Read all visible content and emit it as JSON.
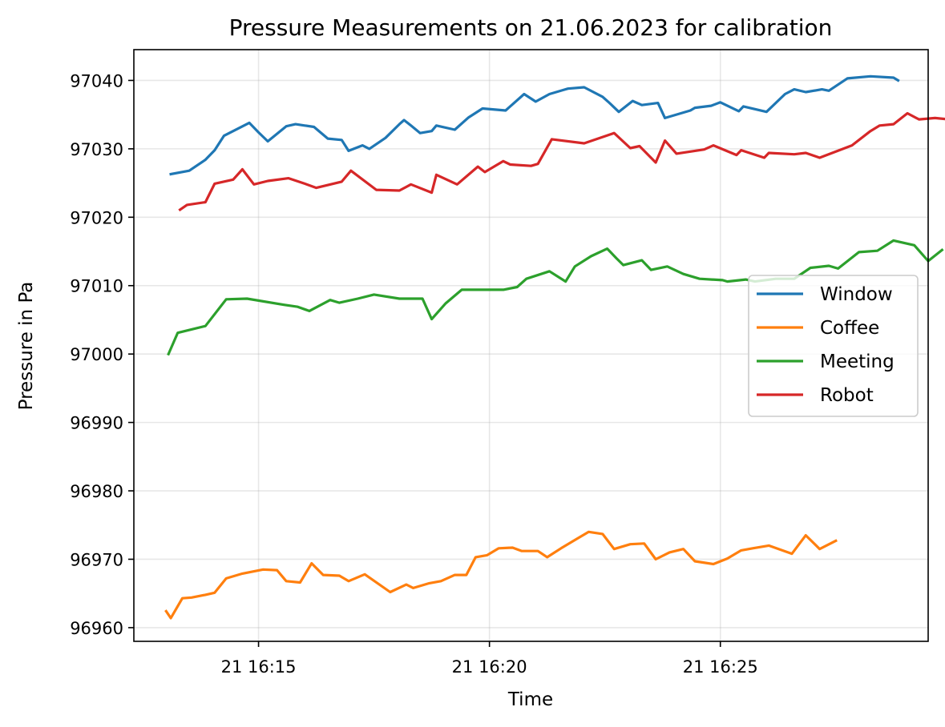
{
  "chart_data": {
    "type": "line",
    "title": "Pressure Measurements on 21.06.2023 for calibration",
    "xlabel": "Time",
    "ylabel": "Pressure in Pa",
    "x_unit": "minutes after 16:00 on 21.06.2023",
    "xlim": [
      12.3,
      29.5
    ],
    "ylim": [
      96958,
      97044.5
    ],
    "x_ticks": [
      {
        "value": 15,
        "label": "21 16:15"
      },
      {
        "value": 20,
        "label": "21 16:20"
      },
      {
        "value": 25,
        "label": "21 16:25"
      }
    ],
    "y_ticks": [
      {
        "value": 96960,
        "label": "96960"
      },
      {
        "value": 96970,
        "label": "96970"
      },
      {
        "value": 96980,
        "label": "96980"
      },
      {
        "value": 96990,
        "label": "96990"
      },
      {
        "value": 97000,
        "label": "97000"
      },
      {
        "value": 97010,
        "label": "97010"
      },
      {
        "value": 97020,
        "label": "97020"
      },
      {
        "value": 97030,
        "label": "97030"
      },
      {
        "value": 97040,
        "label": "97040"
      }
    ],
    "grid": true,
    "legend_position": "center-right",
    "series": [
      {
        "name": "Window",
        "color": "#1f77b4",
        "points": [
          [
            13.1,
            97026.3
          ],
          [
            13.5,
            97026.8
          ],
          [
            13.85,
            97028.4
          ],
          [
            14.05,
            97029.8
          ],
          [
            14.25,
            97031.9
          ],
          [
            14.8,
            97033.8
          ],
          [
            15.0,
            97032.4
          ],
          [
            15.2,
            97031.1
          ],
          [
            15.4,
            97032.2
          ],
          [
            15.6,
            97033.3
          ],
          [
            15.8,
            97033.6
          ],
          [
            16.0,
            97033.4
          ],
          [
            16.2,
            97033.2
          ],
          [
            16.5,
            97031.5
          ],
          [
            16.8,
            97031.3
          ],
          [
            16.95,
            97029.7
          ],
          [
            17.25,
            97030.5
          ],
          [
            17.4,
            97030.0
          ],
          [
            17.75,
            97031.6
          ],
          [
            18.05,
            97033.6
          ],
          [
            18.15,
            97034.2
          ],
          [
            18.3,
            97033.4
          ],
          [
            18.5,
            97032.3
          ],
          [
            18.75,
            97032.6
          ],
          [
            18.85,
            97033.4
          ],
          [
            19.25,
            97032.8
          ],
          [
            19.55,
            97034.6
          ],
          [
            19.85,
            97035.9
          ],
          [
            20.35,
            97035.6
          ],
          [
            20.75,
            97038.0
          ],
          [
            21.0,
            97036.9
          ],
          [
            21.3,
            97038.0
          ],
          [
            21.6,
            97038.6
          ],
          [
            21.7,
            97038.8
          ],
          [
            22.05,
            97039.0
          ],
          [
            22.45,
            97037.6
          ],
          [
            22.6,
            97036.7
          ],
          [
            22.8,
            97035.4
          ],
          [
            23.1,
            97037.0
          ],
          [
            23.3,
            97036.4
          ],
          [
            23.65,
            97036.7
          ],
          [
            23.8,
            97034.5
          ],
          [
            24.35,
            97035.6
          ],
          [
            24.45,
            97036.0
          ],
          [
            24.8,
            97036.3
          ],
          [
            25.0,
            97036.8
          ],
          [
            25.4,
            97035.5
          ],
          [
            25.5,
            97036.2
          ],
          [
            26.0,
            97035.4
          ],
          [
            26.4,
            97038.0
          ],
          [
            26.6,
            97038.7
          ],
          [
            26.85,
            97038.3
          ],
          [
            27.2,
            97038.7
          ],
          [
            27.35,
            97038.5
          ],
          [
            27.75,
            97040.3
          ],
          [
            28.25,
            97040.6
          ],
          [
            28.75,
            97040.4
          ],
          [
            28.85,
            97040.0
          ]
        ]
      },
      {
        "name": "Coffee",
        "color": "#ff7f0e",
        "points": [
          [
            13.0,
            96962.4
          ],
          [
            13.1,
            96961.4
          ],
          [
            13.35,
            96964.3
          ],
          [
            13.55,
            96964.4
          ],
          [
            13.85,
            96964.8
          ],
          [
            14.05,
            96965.1
          ],
          [
            14.3,
            96967.2
          ],
          [
            14.65,
            96967.9
          ],
          [
            15.1,
            96968.5
          ],
          [
            15.4,
            96968.4
          ],
          [
            15.6,
            96966.8
          ],
          [
            15.9,
            96966.6
          ],
          [
            16.15,
            96969.4
          ],
          [
            16.4,
            96967.7
          ],
          [
            16.75,
            96967.6
          ],
          [
            16.95,
            96966.8
          ],
          [
            17.3,
            96967.8
          ],
          [
            17.85,
            96965.2
          ],
          [
            18.2,
            96966.3
          ],
          [
            18.35,
            96965.8
          ],
          [
            18.7,
            96966.5
          ],
          [
            18.95,
            96966.8
          ],
          [
            19.25,
            96967.7
          ],
          [
            19.5,
            96967.7
          ],
          [
            19.7,
            96970.3
          ],
          [
            19.95,
            96970.6
          ],
          [
            20.2,
            96971.6
          ],
          [
            20.5,
            96971.7
          ],
          [
            20.7,
            96971.2
          ],
          [
            21.05,
            96971.2
          ],
          [
            21.25,
            96970.3
          ],
          [
            21.55,
            96971.6
          ],
          [
            21.9,
            96973.0
          ],
          [
            22.15,
            96974.0
          ],
          [
            22.45,
            96973.7
          ],
          [
            22.7,
            96971.5
          ],
          [
            23.05,
            96972.2
          ],
          [
            23.35,
            96972.3
          ],
          [
            23.6,
            96970.0
          ],
          [
            23.9,
            96971.0
          ],
          [
            24.2,
            96971.5
          ],
          [
            24.45,
            96969.7
          ],
          [
            24.85,
            96969.3
          ],
          [
            25.15,
            96970.1
          ],
          [
            25.45,
            96971.3
          ],
          [
            25.7,
            96971.6
          ],
          [
            26.05,
            96972.0
          ],
          [
            26.55,
            96970.8
          ],
          [
            26.85,
            96973.5
          ],
          [
            27.15,
            96971.5
          ],
          [
            27.5,
            96972.7
          ]
        ]
      },
      {
        "name": "Meeting",
        "color": "#2ca02c",
        "points": [
          [
            13.05,
            97000.0
          ],
          [
            13.25,
            97003.1
          ],
          [
            13.85,
            97004.1
          ],
          [
            14.3,
            97008.0
          ],
          [
            14.75,
            97008.1
          ],
          [
            15.55,
            97007.2
          ],
          [
            15.85,
            97006.9
          ],
          [
            16.1,
            97006.3
          ],
          [
            16.55,
            97007.9
          ],
          [
            16.75,
            97007.5
          ],
          [
            17.15,
            97008.1
          ],
          [
            17.5,
            97008.7
          ],
          [
            18.05,
            97008.1
          ],
          [
            18.55,
            97008.1
          ],
          [
            18.75,
            97005.1
          ],
          [
            19.05,
            97007.4
          ],
          [
            19.4,
            97009.4
          ],
          [
            20.05,
            97009.4
          ],
          [
            20.3,
            97009.4
          ],
          [
            20.6,
            97009.8
          ],
          [
            20.8,
            97011.0
          ],
          [
            21.3,
            97012.1
          ],
          [
            21.65,
            97010.6
          ],
          [
            21.85,
            97012.8
          ],
          [
            22.2,
            97014.3
          ],
          [
            22.55,
            97015.4
          ],
          [
            22.75,
            97014.0
          ],
          [
            22.9,
            97013.0
          ],
          [
            23.3,
            97013.7
          ],
          [
            23.5,
            97012.3
          ],
          [
            23.85,
            97012.8
          ],
          [
            24.2,
            97011.7
          ],
          [
            24.55,
            97011.0
          ],
          [
            25.05,
            97010.8
          ],
          [
            25.15,
            97010.6
          ],
          [
            25.55,
            97010.9
          ],
          [
            25.75,
            97010.6
          ],
          [
            26.2,
            97011.0
          ],
          [
            26.6,
            97011.0
          ],
          [
            26.95,
            97012.6
          ],
          [
            27.35,
            97012.9
          ],
          [
            27.55,
            97012.5
          ],
          [
            28.0,
            97014.9
          ],
          [
            28.4,
            97015.1
          ],
          [
            28.75,
            97016.6
          ],
          [
            29.2,
            97015.9
          ],
          [
            29.5,
            97013.6
          ],
          [
            29.8,
            97015.2
          ]
        ]
      },
      {
        "name": "Robot",
        "color": "#d62728",
        "points": [
          [
            13.3,
            97021.1
          ],
          [
            13.45,
            97021.8
          ],
          [
            13.85,
            97022.2
          ],
          [
            14.05,
            97024.9
          ],
          [
            14.45,
            97025.5
          ],
          [
            14.65,
            97027.0
          ],
          [
            14.9,
            97024.8
          ],
          [
            15.2,
            97025.3
          ],
          [
            15.65,
            97025.7
          ],
          [
            16.0,
            97024.9
          ],
          [
            16.25,
            97024.3
          ],
          [
            16.8,
            97025.2
          ],
          [
            17.0,
            97026.8
          ],
          [
            17.55,
            97024.0
          ],
          [
            18.05,
            97023.9
          ],
          [
            18.3,
            97024.8
          ],
          [
            18.75,
            97023.6
          ],
          [
            18.85,
            97026.2
          ],
          [
            19.3,
            97024.8
          ],
          [
            19.75,
            97027.4
          ],
          [
            19.9,
            97026.6
          ],
          [
            20.3,
            97028.2
          ],
          [
            20.45,
            97027.7
          ],
          [
            20.9,
            97027.5
          ],
          [
            21.05,
            97027.8
          ],
          [
            21.35,
            97031.4
          ],
          [
            22.05,
            97030.8
          ],
          [
            22.7,
            97032.3
          ],
          [
            23.05,
            97030.1
          ],
          [
            23.25,
            97030.4
          ],
          [
            23.6,
            97028.0
          ],
          [
            23.8,
            97031.2
          ],
          [
            24.05,
            97029.3
          ],
          [
            24.65,
            97029.9
          ],
          [
            24.85,
            97030.5
          ],
          [
            25.35,
            97029.1
          ],
          [
            25.45,
            97029.8
          ],
          [
            25.95,
            97028.7
          ],
          [
            26.05,
            97029.4
          ],
          [
            26.6,
            97029.2
          ],
          [
            26.85,
            97029.4
          ],
          [
            27.15,
            97028.7
          ],
          [
            27.85,
            97030.5
          ],
          [
            28.25,
            97032.6
          ],
          [
            28.45,
            97033.4
          ],
          [
            28.75,
            97033.6
          ],
          [
            29.05,
            97035.2
          ],
          [
            29.3,
            97034.3
          ],
          [
            29.65,
            97034.5
          ],
          [
            29.95,
            97034.3
          ],
          [
            30.25,
            97035.0
          ]
        ]
      }
    ]
  }
}
